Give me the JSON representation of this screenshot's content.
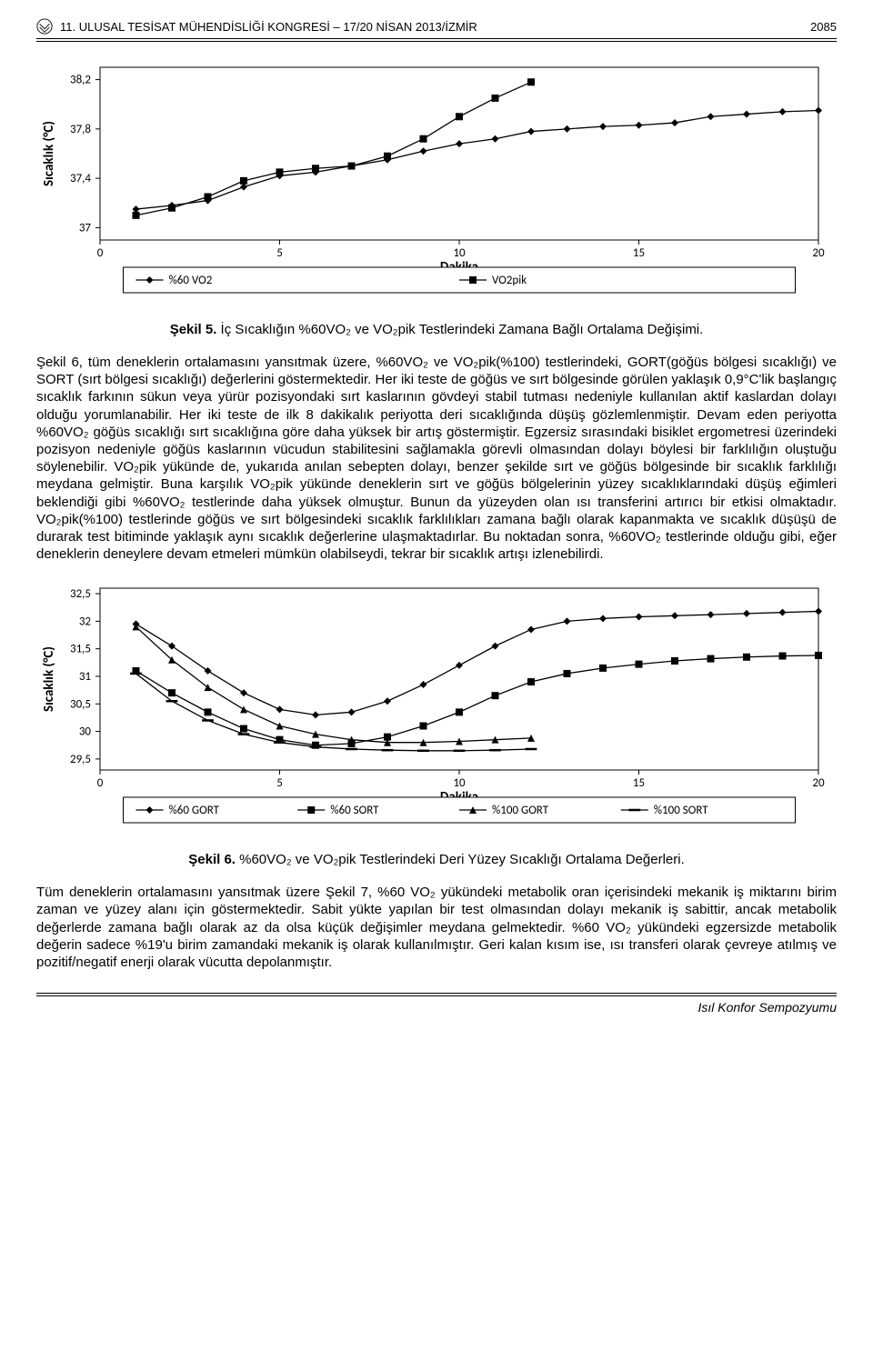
{
  "header": {
    "conference": "11. ULUSAL TESİSAT MÜHENDİSLİĞİ KONGRESİ – 17/20 NİSAN 2013/İZMİR",
    "page_number": "2085"
  },
  "chart1": {
    "type": "line",
    "x_label": "Dakika",
    "y_label": "Sıcaklık (°C)",
    "x_ticks": [
      0,
      5,
      10,
      15,
      20
    ],
    "y_ticks": [
      37,
      37.4,
      37.8,
      38.2
    ],
    "y_tick_labels": [
      "37",
      "37,4",
      "37,8",
      "38,2"
    ],
    "xlim": [
      0,
      20
    ],
    "ylim": [
      36.9,
      38.3
    ],
    "series": [
      {
        "name": "%60 VO2",
        "marker": "diamond",
        "color": "#000000",
        "line_width": 1.3,
        "points": [
          [
            1,
            37.15
          ],
          [
            2,
            37.18
          ],
          [
            3,
            37.22
          ],
          [
            4,
            37.33
          ],
          [
            5,
            37.42
          ],
          [
            6,
            37.45
          ],
          [
            7,
            37.5
          ],
          [
            8,
            37.55
          ],
          [
            9,
            37.62
          ],
          [
            10,
            37.68
          ],
          [
            11,
            37.72
          ],
          [
            12,
            37.78
          ],
          [
            13,
            37.8
          ],
          [
            14,
            37.82
          ],
          [
            15,
            37.83
          ],
          [
            16,
            37.85
          ],
          [
            17,
            37.9
          ],
          [
            18,
            37.92
          ],
          [
            19,
            37.94
          ],
          [
            20,
            37.95
          ]
        ]
      },
      {
        "name": "VO2pik",
        "marker": "square",
        "color": "#000000",
        "line_width": 1.3,
        "points": [
          [
            1,
            37.1
          ],
          [
            2,
            37.16
          ],
          [
            3,
            37.25
          ],
          [
            4,
            37.38
          ],
          [
            5,
            37.45
          ],
          [
            6,
            37.48
          ],
          [
            7,
            37.5
          ],
          [
            8,
            37.58
          ],
          [
            9,
            37.72
          ],
          [
            10,
            37.9
          ],
          [
            11,
            38.05
          ],
          [
            12,
            38.18
          ]
        ]
      }
    ],
    "legend": [
      "%60 VO2",
      "VO2pik"
    ],
    "background_color": "#ffffff",
    "grid": false
  },
  "caption1_bold": "Şekil 5.",
  "caption1_rest": " İç Sıcaklığın %60VO₂ ve VO₂pik Testlerindeki Zamana Bağlı Ortalama Değişimi.",
  "body1": "Şekil 6, tüm deneklerin ortalamasını yansıtmak üzere, %60VO₂ ve VO₂pik(%100) testlerindeki, GORT(göğüs bölgesi sıcaklığı) ve SORT (sırt bölgesi sıcaklığı) değerlerini göstermektedir. Her iki teste de göğüs ve sırt bölgesinde görülen yaklaşık 0,9°C'lik başlangıç sıcaklık farkının sükun veya yürür pozisyondaki sırt kaslarının gövdeyi stabil tutması nedeniyle kullanılan aktif kaslardan dolayı olduğu yorumlanabilir. Her iki teste de ilk 8 dakikalık periyotta deri sıcaklığında düşüş gözlemlenmiştir. Devam eden periyotta %60VO₂ göğüs sıcaklığı sırt sıcaklığına göre daha yüksek bir artış göstermiştir. Egzersiz sırasındaki bisiklet ergometresi üzerindeki pozisyon nedeniyle göğüs kaslarının vücudun stabilitesini sağlamakla görevli olmasından dolayı böylesi bir farklılığın oluştuğu söylenebilir. VO₂pik yükünde de, yukarıda anılan sebepten dolayı, benzer şekilde sırt ve göğüs bölgesinde bir sıcaklık farklılığı meydana gelmiştir. Buna karşılık VO₂pik yükünde deneklerin sırt ve göğüs bölgelerinin yüzey sıcaklıklarındaki düşüş eğimleri beklendiği gibi %60VO₂ testlerinde daha yüksek olmuştur. Bunun da yüzeyden olan ısı transferini artırıcı bir etkisi olmaktadır. VO₂pik(%100) testlerinde göğüs ve sırt bölgesindeki sıcaklık farklılıkları zamana bağlı olarak kapanmakta ve sıcaklık düşüşü de durarak test bitiminde yaklaşık aynı sıcaklık değerlerine ulaşmaktadırlar. Bu noktadan sonra, %60VO₂ testlerinde olduğu gibi, eğer deneklerin deneylere devam etmeleri mümkün olabilseydi, tekrar bir sıcaklık artışı izlenebilirdi.",
  "chart2": {
    "type": "line",
    "x_label": "Dakika",
    "y_label": "Sıcaklık (°C)",
    "x_ticks": [
      0,
      5,
      10,
      15,
      20
    ],
    "y_ticks": [
      29.5,
      30,
      30.5,
      31,
      31.5,
      32,
      32.5
    ],
    "y_tick_labels": [
      "29,5",
      "30",
      "30,5",
      "31",
      "31,5",
      "32",
      "32,5"
    ],
    "xlim": [
      0,
      20
    ],
    "ylim": [
      29.3,
      32.6
    ],
    "series": [
      {
        "name": "%60 GORT",
        "marker": "diamond",
        "color": "#000000",
        "line_width": 1.3,
        "points": [
          [
            1,
            31.95
          ],
          [
            2,
            31.55
          ],
          [
            3,
            31.1
          ],
          [
            4,
            30.7
          ],
          [
            5,
            30.4
          ],
          [
            6,
            30.3
          ],
          [
            7,
            30.35
          ],
          [
            8,
            30.55
          ],
          [
            9,
            30.85
          ],
          [
            10,
            31.2
          ],
          [
            11,
            31.55
          ],
          [
            12,
            31.85
          ],
          [
            13,
            32.0
          ],
          [
            14,
            32.05
          ],
          [
            15,
            32.08
          ],
          [
            16,
            32.1
          ],
          [
            17,
            32.12
          ],
          [
            18,
            32.14
          ],
          [
            19,
            32.16
          ],
          [
            20,
            32.18
          ]
        ]
      },
      {
        "name": "%60 SORT",
        "marker": "square",
        "color": "#000000",
        "line_width": 1.3,
        "points": [
          [
            1,
            31.1
          ],
          [
            2,
            30.7
          ],
          [
            3,
            30.35
          ],
          [
            4,
            30.05
          ],
          [
            5,
            29.85
          ],
          [
            6,
            29.75
          ],
          [
            7,
            29.78
          ],
          [
            8,
            29.9
          ],
          [
            9,
            30.1
          ],
          [
            10,
            30.35
          ],
          [
            11,
            30.65
          ],
          [
            12,
            30.9
          ],
          [
            13,
            31.05
          ],
          [
            14,
            31.15
          ],
          [
            15,
            31.22
          ],
          [
            16,
            31.28
          ],
          [
            17,
            31.32
          ],
          [
            18,
            31.35
          ],
          [
            19,
            31.37
          ],
          [
            20,
            31.38
          ]
        ]
      },
      {
        "name": "%100 GORT",
        "marker": "triangle",
        "color": "#000000",
        "line_width": 1.3,
        "points": [
          [
            1,
            31.9
          ],
          [
            2,
            31.3
          ],
          [
            3,
            30.8
          ],
          [
            4,
            30.4
          ],
          [
            5,
            30.1
          ],
          [
            6,
            29.95
          ],
          [
            7,
            29.85
          ],
          [
            8,
            29.8
          ],
          [
            9,
            29.8
          ],
          [
            10,
            29.82
          ],
          [
            11,
            29.85
          ],
          [
            12,
            29.88
          ]
        ]
      },
      {
        "name": "%100 SORT",
        "marker": "line",
        "color": "#000000",
        "line_width": 1.3,
        "points": [
          [
            1,
            31.05
          ],
          [
            2,
            30.55
          ],
          [
            3,
            30.2
          ],
          [
            4,
            29.95
          ],
          [
            5,
            29.8
          ],
          [
            6,
            29.72
          ],
          [
            7,
            29.68
          ],
          [
            8,
            29.66
          ],
          [
            9,
            29.65
          ],
          [
            10,
            29.65
          ],
          [
            11,
            29.66
          ],
          [
            12,
            29.68
          ]
        ]
      }
    ],
    "legend": [
      "%60 GORT",
      "%60 SORT",
      "%100 GORT",
      "%100 SORT"
    ],
    "background_color": "#ffffff",
    "grid": false
  },
  "caption2_bold": "Şekil 6.",
  "caption2_rest": " %60VO₂ ve VO₂pik Testlerindeki Deri Yüzey Sıcaklığı Ortalama Değerleri.",
  "body2": "Tüm deneklerin ortalamasını yansıtmak üzere Şekil 7, %60 VO₂ yükündeki metabolik oran içerisindeki mekanik iş miktarını birim zaman ve yüzey alanı için göstermektedir. Sabit yükte yapılan bir test olmasından dolayı mekanik iş sabittir, ancak metabolik değerlerde zamana bağlı olarak az da olsa küçük değişimler meydana gelmektedir. %60 VO₂ yükündeki egzersizde metabolik değerin sadece %19'u birim zamandaki mekanik iş olarak kullanılmıştır. Geri kalan kısım ise, ısı transferi olarak çevreye atılmış ve pozitif/negatif enerji olarak vücutta depolanmıştır.",
  "footer": "Isıl Konfor Sempozyumu"
}
